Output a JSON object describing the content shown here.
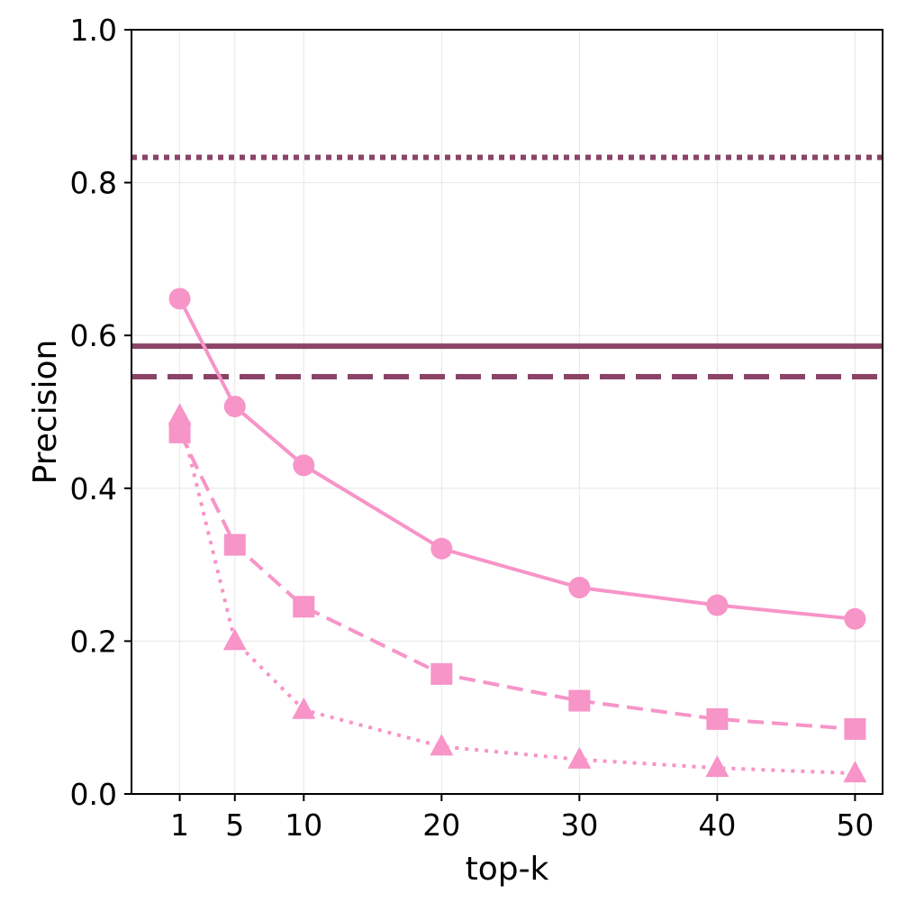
{
  "chart_data": {
    "type": "line",
    "title": "",
    "xlabel": "top-k",
    "ylabel": "Precision",
    "x": [
      1,
      5,
      10,
      20,
      30,
      40,
      50
    ],
    "x_tick_labels": [
      "1",
      "5",
      "10",
      "20",
      "30",
      "40",
      "50"
    ],
    "y_tick_labels": [
      "0.0",
      "0.2",
      "0.4",
      "0.6",
      "0.8",
      "1.0"
    ],
    "xlim": [
      -2.5,
      52
    ],
    "ylim": [
      0,
      1.0
    ],
    "grid": true,
    "legend": "none",
    "series": [
      {
        "marker": "circle",
        "linestyle": "solid",
        "color": "#f794c8",
        "values": [
          0.648,
          0.507,
          0.43,
          0.321,
          0.27,
          0.247,
          0.229
        ]
      },
      {
        "marker": "square",
        "linestyle": "dashed",
        "color": "#f794c8",
        "values": [
          0.473,
          0.326,
          0.245,
          0.157,
          0.122,
          0.098,
          0.085
        ]
      },
      {
        "marker": "triangle",
        "linestyle": "dotted",
        "color": "#f794c8",
        "values": [
          0.495,
          0.2,
          0.11,
          0.062,
          0.045,
          0.034,
          0.027
        ]
      }
    ],
    "reference_lines": [
      {
        "y": 0.833,
        "linestyle": "dotted",
        "color": "#8b4468"
      },
      {
        "y": 0.586,
        "linestyle": "solid",
        "color": "#8b4468"
      },
      {
        "y": 0.546,
        "linestyle": "dashed",
        "color": "#8b4468"
      }
    ]
  }
}
